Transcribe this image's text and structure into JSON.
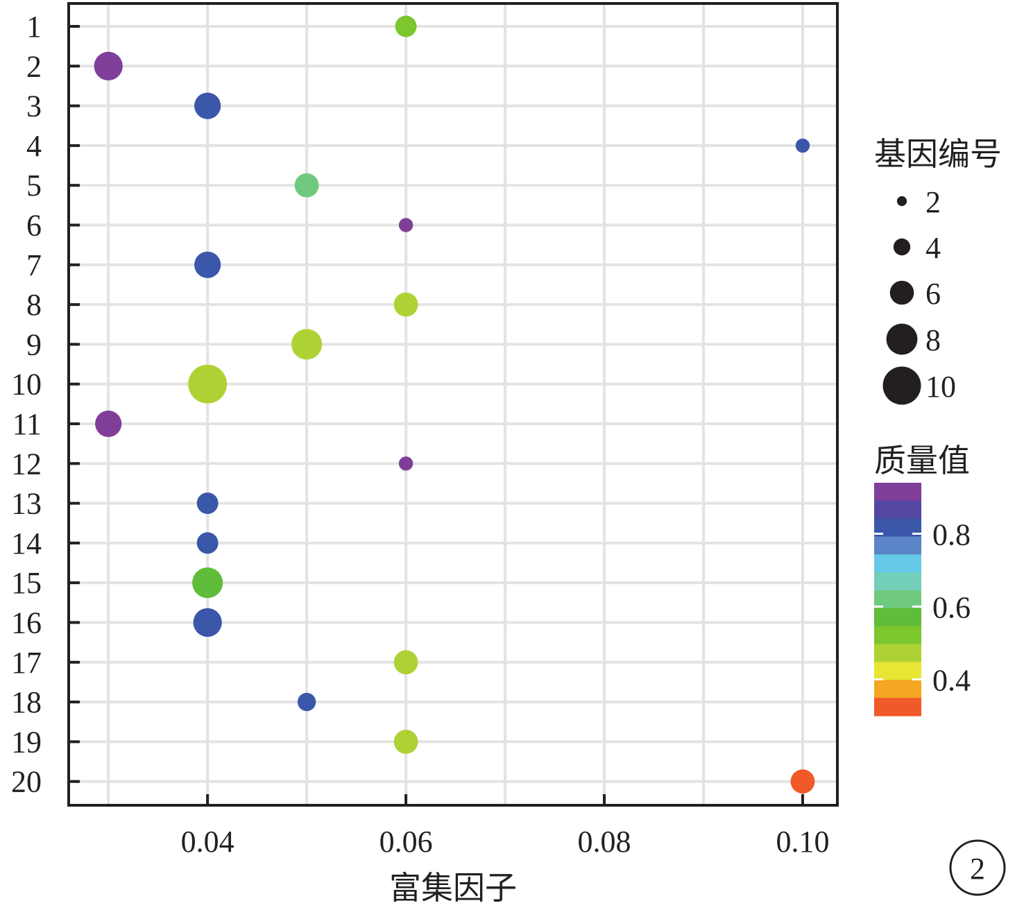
{
  "chart_data": {
    "type": "scatter",
    "title": "",
    "xlabel": "富集因子",
    "ylabel": "",
    "xlim": [
      0.026,
      0.1035
    ],
    "x_ticks": [
      0.04,
      0.06,
      0.08,
      0.1
    ],
    "x_tick_labels": [
      "0.04",
      "0.06",
      "0.08",
      "0.10"
    ],
    "x_minor_grid": [
      0.03,
      0.05,
      0.07,
      0.09
    ],
    "y_categories": [
      "1",
      "2",
      "3",
      "4",
      "5",
      "6",
      "7",
      "8",
      "9",
      "10",
      "11",
      "12",
      "13",
      "14",
      "15",
      "16",
      "17",
      "18",
      "19",
      "20"
    ],
    "grid": true,
    "points": [
      {
        "y": "1",
        "x": 0.06,
        "size": 3,
        "value": 0.5
      },
      {
        "y": "2",
        "x": 0.03,
        "size": 6,
        "value": 0.9
      },
      {
        "y": "3",
        "x": 0.04,
        "size": 5,
        "value": 0.82
      },
      {
        "y": "4",
        "x": 0.1,
        "size": 1,
        "value": 0.82
      },
      {
        "y": "5",
        "x": 0.05,
        "size": 4,
        "value": 0.64
      },
      {
        "y": "6",
        "x": 0.06,
        "size": 1,
        "value": 0.9
      },
      {
        "y": "7",
        "x": 0.04,
        "size": 5,
        "value": 0.82
      },
      {
        "y": "8",
        "x": 0.06,
        "size": 4,
        "value": 0.45
      },
      {
        "y": "9",
        "x": 0.05,
        "size": 7,
        "value": 0.45
      },
      {
        "y": "10",
        "x": 0.04,
        "size": 12,
        "value": 0.45
      },
      {
        "y": "11",
        "x": 0.03,
        "size": 5,
        "value": 0.9
      },
      {
        "y": "12",
        "x": 0.06,
        "size": 1,
        "value": 0.9
      },
      {
        "y": "13",
        "x": 0.04,
        "size": 3,
        "value": 0.82
      },
      {
        "y": "14",
        "x": 0.04,
        "size": 3,
        "value": 0.82
      },
      {
        "y": "15",
        "x": 0.04,
        "size": 7,
        "value": 0.56
      },
      {
        "y": "16",
        "x": 0.04,
        "size": 6,
        "value": 0.82
      },
      {
        "y": "17",
        "x": 0.06,
        "size": 4,
        "value": 0.45
      },
      {
        "y": "18",
        "x": 0.05,
        "size": 2,
        "value": 0.82
      },
      {
        "y": "19",
        "x": 0.06,
        "size": 4,
        "value": 0.45
      },
      {
        "y": "20",
        "x": 0.1,
        "size": 4,
        "value": 0.28
      }
    ],
    "size_legend": {
      "title": "基因编号",
      "entries": [
        {
          "label": "2",
          "size": 2
        },
        {
          "label": "4",
          "size": 4
        },
        {
          "label": "6",
          "size": 6
        },
        {
          "label": "8",
          "size": 8
        },
        {
          "label": "10",
          "size": 10
        }
      ]
    },
    "color_legend": {
      "title": "质量值",
      "range": [
        0.3,
        0.94
      ],
      "tick_values": [
        0.8,
        0.6,
        0.4
      ],
      "tick_labels": [
        "0.8",
        "0.6",
        "0.4"
      ],
      "colors_top_to_bottom": [
        "#7f3f98",
        "#5448a2",
        "#3b57aa",
        "#5c85c8",
        "#67c9e8",
        "#74cfb9",
        "#6fca7f",
        "#5fbd39",
        "#7cc62e",
        "#aed235",
        "#e6e633",
        "#f5a623",
        "#f05a28"
      ]
    },
    "badge": "2"
  }
}
